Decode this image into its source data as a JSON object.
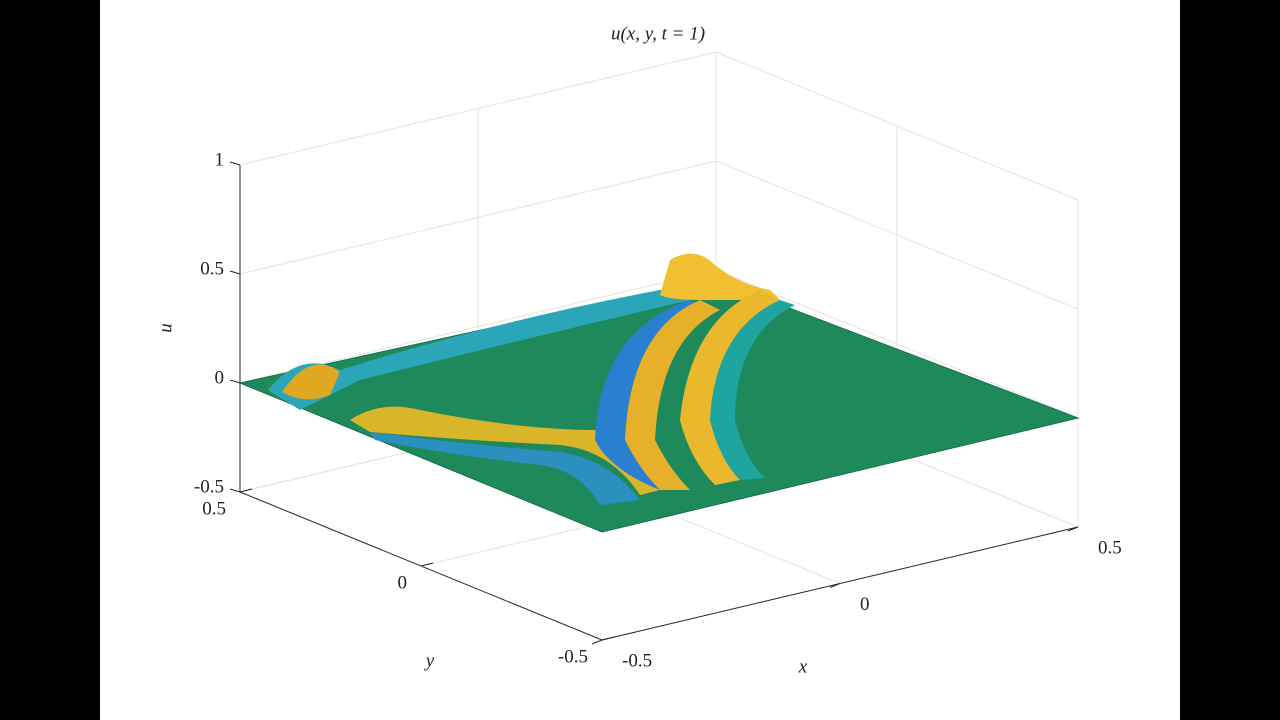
{
  "chart_data": {
    "type": "surface",
    "title": "u(x, y, t = 1)",
    "xlabel": "x",
    "ylabel": "y",
    "zlabel": "u",
    "xlim": [
      -0.5,
      0.5
    ],
    "ylim": [
      -0.5,
      0.5
    ],
    "zlim": [
      -0.5,
      1
    ],
    "xticks": [
      -0.5,
      0,
      0.5
    ],
    "yticks": [
      -0.5,
      0,
      0.5
    ],
    "zticks": [
      -0.5,
      0,
      0.5,
      1
    ],
    "grid": true
  }
}
